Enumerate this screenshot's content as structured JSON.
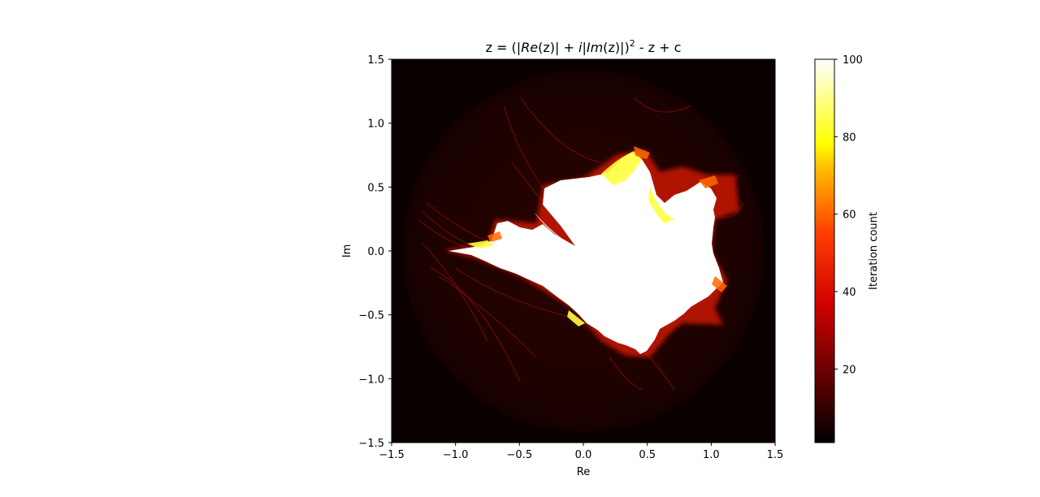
{
  "chart_data": {
    "type": "heatmap",
    "title_parts": {
      "prefix": "z = (|",
      "re": "Re",
      "mid1": "(z)| + ",
      "i": "i",
      "mid2": "|",
      "im": "Im",
      "mid3": "(z)|)",
      "exp": "2",
      "suffix": " - z + c"
    },
    "xlabel": "Re",
    "ylabel": "Im",
    "xlim": [
      -1.5,
      1.5
    ],
    "ylim": [
      -1.5,
      1.5
    ],
    "x_ticks": [
      -1.5,
      -1.0,
      -0.5,
      0.0,
      0.5,
      1.0,
      1.5
    ],
    "x_tick_labels": [
      "−1.5",
      "−1.0",
      "−0.5",
      "0.0",
      "0.5",
      "1.0",
      "1.5"
    ],
    "y_ticks": [
      1.5,
      1.0,
      0.5,
      0.0,
      -0.5,
      -1.0,
      -1.5
    ],
    "y_tick_labels": [
      "1.5",
      "1.0",
      "0.5",
      "0.0",
      "−0.5",
      "−1.0",
      "−1.5"
    ],
    "colormap": "hot",
    "colorbar": {
      "label": "Iteration count",
      "range": [
        1,
        100
      ],
      "ticks": [
        20,
        40,
        60,
        80,
        100
      ],
      "tick_labels": [
        "20",
        "40",
        "60",
        "80",
        "100"
      ],
      "colors": [
        "#000000",
        "#b00000",
        "#ff0000",
        "#ff8000",
        "#ffff00",
        "#ffffff"
      ]
    },
    "grid": false,
    "disc_radius": 1.41,
    "colors": {
      "outside": "#0b0000",
      "disc": "#1f0200",
      "boundary": "#c01500",
      "interior": "#ffffff"
    }
  }
}
